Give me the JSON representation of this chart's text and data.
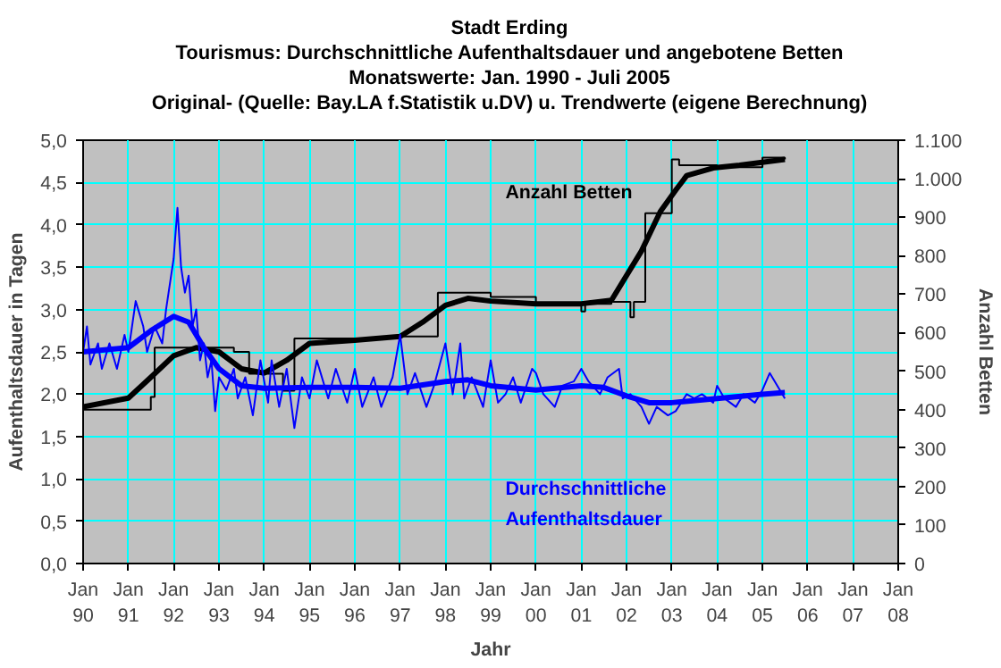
{
  "chart_data": {
    "type": "line",
    "title": "Stadt Erding",
    "subtitle": "Tourismus: Durchschnittliche Aufenthaltsdauer und angebotene Betten\nMonatswerte: Jan. 1990 - Juli 2005\nOriginal- (Quelle: Bay.LA f.Statistik u.DV) u. Trendwerte (eigene Berechnung)",
    "xlabel": "Jahr",
    "ylabel": "Aufenthaltsdauer in Tagen",
    "y2label": "Anzahl Betten",
    "xlim": [
      "1990-01",
      "2008-01"
    ],
    "xticks": [
      {
        "value": "1990-01",
        "label": "Jan\n90"
      },
      {
        "value": "1991-01",
        "label": "Jan\n91"
      },
      {
        "value": "1992-01",
        "label": "Jan\n92"
      },
      {
        "value": "1993-01",
        "label": "Jan\n93"
      },
      {
        "value": "1994-01",
        "label": "Jan\n94"
      },
      {
        "value": "1995-01",
        "label": "Jan\n95"
      },
      {
        "value": "1996-01",
        "label": "Jan\n96"
      },
      {
        "value": "1997-01",
        "label": "Jan\n97"
      },
      {
        "value": "1998-01",
        "label": "Jan\n98"
      },
      {
        "value": "1999-01",
        "label": "Jan\n99"
      },
      {
        "value": "2000-01",
        "label": "Jan\n00"
      },
      {
        "value": "2001-01",
        "label": "Jan\n01"
      },
      {
        "value": "2002-01",
        "label": "Jan\n02"
      },
      {
        "value": "2003-01",
        "label": "Jan\n03"
      },
      {
        "value": "2004-01",
        "label": "Jan\n04"
      },
      {
        "value": "2005-01",
        "label": "Jan\n05"
      },
      {
        "value": "2006-01",
        "label": "Jan\n06"
      },
      {
        "value": "2007-01",
        "label": "Jan\n07"
      },
      {
        "value": "2008-01",
        "label": "Jan\n08"
      }
    ],
    "ylim": [
      0,
      5
    ],
    "yticks": [
      {
        "value": 0,
        "label": "0,0"
      },
      {
        "value": 0.5,
        "label": "0,5"
      },
      {
        "value": 1,
        "label": "1,0"
      },
      {
        "value": 1.5,
        "label": "1,5"
      },
      {
        "value": 2,
        "label": "2,0"
      },
      {
        "value": 2.5,
        "label": "2,5"
      },
      {
        "value": 3,
        "label": "3,0"
      },
      {
        "value": 3.5,
        "label": "3,5"
      },
      {
        "value": 4,
        "label": "4,0"
      },
      {
        "value": 4.5,
        "label": "4,5"
      },
      {
        "value": 5,
        "label": "5,0"
      }
    ],
    "y2lim": [
      0,
      1100
    ],
    "y2ticks": [
      0,
      100,
      200,
      300,
      400,
      500,
      600,
      700,
      800,
      900,
      {
        "value": 1000,
        "label": "1.000"
      },
      {
        "value": 1100,
        "label": "1.100"
      }
    ],
    "grid": true,
    "annotations": [
      "Anzahl Betten",
      "Durchschnittliche\nAufenthaltsdauer"
    ],
    "series": [
      {
        "type": "step",
        "color": "#000000",
        "axis": "y2",
        "x": [
          "1990-01",
          "1991-07",
          "1991-08",
          "1992-01",
          "1993-05",
          "1993-09",
          "1994-06",
          "1994-09",
          "1996-01",
          "1997-01",
          "1997-11",
          "1999-01",
          "2000-01",
          "2001-01",
          "2001-02",
          "2001-09",
          "2002-02",
          "2002-03",
          "2002-06",
          "2003-01",
          "2003-03",
          "2004-01",
          "2005-01",
          "2005-07"
        ],
        "values": [
          400,
          433,
          561,
          561,
          550,
          493,
          449,
          585,
          585,
          590,
          704,
          693,
          675,
          655,
          675,
          680,
          640,
          680,
          910,
          1050,
          1035,
          1030,
          1055,
          1050
        ]
      },
      {
        "color": "#000000",
        "axis": "y2",
        "x": [
          "1990-01",
          "1991-01",
          "1991-07",
          "1992-01",
          "1992-07",
          "1993-01",
          "1993-07",
          "1994-01",
          "1994-07",
          "1995-01",
          "1996-01",
          "1997-01",
          "1997-07",
          "1998-01",
          "1998-07",
          "1999-01",
          "2000-01",
          "2001-01",
          "2001-09",
          "2002-05",
          "2002-10",
          "2003-02",
          "2003-05",
          "2003-12",
          "2004-07",
          "2005-07"
        ],
        "values": [
          407,
          430,
          484,
          540,
          561,
          550,
          506,
          495,
          528,
          572,
          580,
          590,
          627,
          671,
          689,
          682,
          675,
          675,
          684,
          812,
          915,
          970,
          1008,
          1028,
          1035,
          1050
        ]
      },
      {
        "color": "#0000ff",
        "x": [
          "1990-01",
          "1990-02",
          "1990-03",
          "1990-05",
          "1990-06",
          "1990-08",
          "1990-10",
          "1990-12",
          "1991-01",
          "1991-03",
          "1991-05",
          "1991-06",
          "1991-08",
          "1991-10",
          "1991-11",
          "1992-01",
          "1992-02",
          "1992-03",
          "1992-04",
          "1992-05",
          "1992-06",
          "1992-07",
          "1992-08",
          "1992-09",
          "1992-10",
          "1992-11",
          "1992-12",
          "1993-01",
          "1993-03",
          "1993-05",
          "1993-06",
          "1993-08",
          "1993-10",
          "1993-12",
          "1994-02",
          "1994-03",
          "1994-05",
          "1994-07",
          "1994-09",
          "1994-11",
          "1995-01",
          "1995-03",
          "1995-06",
          "1995-08",
          "1995-11",
          "1996-01",
          "1996-03",
          "1996-06",
          "1996-08",
          "1996-11",
          "1997-01",
          "1997-03",
          "1997-05",
          "1997-08",
          "1997-10",
          "1998-01",
          "1998-03",
          "1998-05",
          "1998-06",
          "1998-08",
          "1998-11",
          "1999-01",
          "1999-03",
          "1999-05",
          "1999-07",
          "1999-09",
          "1999-12",
          "2000-01",
          "2000-03",
          "2000-06",
          "2000-08",
          "2000-11",
          "2001-01",
          "2001-03",
          "2001-06",
          "2001-08",
          "2001-11",
          "2001-12",
          "2002-02",
          "2002-05",
          "2002-07",
          "2002-09",
          "2002-12",
          "2003-02",
          "2003-05",
          "2003-07",
          "2003-09",
          "2003-12",
          "2004-01",
          "2004-03",
          "2004-06",
          "2004-08",
          "2004-11",
          "2005-01",
          "2005-03",
          "2005-05",
          "2005-07"
        ],
        "values": [
          2.5,
          2.8,
          2.35,
          2.6,
          2.3,
          2.6,
          2.3,
          2.7,
          2.5,
          3.1,
          2.8,
          2.5,
          2.8,
          2.6,
          3.0,
          3.6,
          4.2,
          3.5,
          3.2,
          3.4,
          2.8,
          3.0,
          2.4,
          2.6,
          2.2,
          2.4,
          1.8,
          2.2,
          2.05,
          2.3,
          1.95,
          2.2,
          1.75,
          2.4,
          1.9,
          2.4,
          1.85,
          2.3,
          1.6,
          2.2,
          1.95,
          2.4,
          1.95,
          2.3,
          1.9,
          2.3,
          1.85,
          2.2,
          1.85,
          2.2,
          2.7,
          2.0,
          2.25,
          1.85,
          2.1,
          2.6,
          2.0,
          2.6,
          1.95,
          2.2,
          1.85,
          2.4,
          1.9,
          2.0,
          2.2,
          1.9,
          2.3,
          2.25,
          2.0,
          1.85,
          2.1,
          2.15,
          2.3,
          2.15,
          2.0,
          2.2,
          2.3,
          1.95,
          2.0,
          1.85,
          1.65,
          1.85,
          1.75,
          1.8,
          2.0,
          1.95,
          2.0,
          1.9,
          2.1,
          1.95,
          1.85,
          2.0,
          1.9,
          2.05,
          2.25,
          2.1,
          1.95
        ]
      },
      {
        "color": "#0000ff",
        "x": [
          "1990-01",
          "1991-01",
          "1991-07",
          "1992-01",
          "1992-05",
          "1992-09",
          "1993-01",
          "1993-07",
          "1994-01",
          "1995-01",
          "1996-01",
          "1997-01",
          "1998-01",
          "1998-07",
          "1999-01",
          "2000-01",
          "2001-01",
          "2001-07",
          "2002-01",
          "2002-07",
          "2003-01",
          "2004-01",
          "2005-01",
          "2005-07"
        ],
        "values": [
          2.5,
          2.55,
          2.75,
          2.92,
          2.85,
          2.55,
          2.3,
          2.1,
          2.07,
          2.08,
          2.08,
          2.07,
          2.15,
          2.17,
          2.1,
          2.05,
          2.1,
          2.08,
          1.98,
          1.9,
          1.9,
          1.95,
          2.0,
          2.02
        ]
      }
    ]
  }
}
